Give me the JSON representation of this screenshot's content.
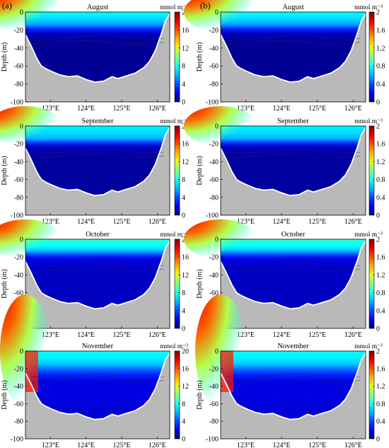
{
  "panel_labels": [
    "(a)",
    "(b)"
  ],
  "months": [
    "August",
    "September",
    "October",
    "November"
  ],
  "column_a": {
    "label": "(a)",
    "unit": "mmol m⁻³",
    "cbar_ticks": [
      "0",
      "4",
      "8",
      "12",
      "16",
      "20"
    ],
    "vmax": 20
  },
  "column_b": {
    "label": "(b)",
    "unit": "mmol m⁻³",
    "cbar_ticks": [
      "0",
      "0.4",
      "0.8",
      "1.2",
      "1.6",
      "2"
    ],
    "vmax": 2
  },
  "ylabel": "Depth (m)",
  "yticks": [
    "0",
    "-20",
    "-40",
    "-60",
    "-80",
    "-100"
  ],
  "xticks": [
    "123°E",
    "124°E",
    "125°E",
    "126°E"
  ],
  "colors": {
    "land": "#b9b9b9",
    "frame": "#000000"
  },
  "chart_data": [
    {
      "type": "heatmap",
      "title": "",
      "xlabel": "",
      "ylabel": "Depth (m)",
      "ylim": [
        -100,
        0
      ],
      "xlim": [
        122.3,
        126.35
      ],
      "colorscale": "jet",
      "zlim": [
        0,
        20
      ],
      "unit": "mmol m⁻³",
      "panels": [
        {
          "title": "August",
          "surface_max": 20,
          "deep_value": 0.5
        },
        {
          "title": "September",
          "surface_max": 20,
          "deep_value": 0.6
        },
        {
          "title": "October",
          "surface_max": 20,
          "deep_value": 1.0
        },
        {
          "title": "November",
          "surface_max": 20,
          "deep_value": 1.5
        }
      ]
    },
    {
      "type": "heatmap",
      "title": "",
      "xlabel": "",
      "ylabel": "Depth (m)",
      "ylim": [
        -100,
        0
      ],
      "xlim": [
        122.3,
        126.35
      ],
      "colorscale": "jet",
      "zlim": [
        0,
        2
      ],
      "unit": "mmol m⁻³",
      "panels": [
        {
          "title": "August",
          "surface_max": 2,
          "deep_value": 0.05
        },
        {
          "title": "September",
          "surface_max": 2,
          "deep_value": 0.06
        },
        {
          "title": "October",
          "surface_max": 2,
          "deep_value": 0.12
        },
        {
          "title": "November",
          "surface_max": 2,
          "deep_value": 0.15
        }
      ]
    }
  ]
}
